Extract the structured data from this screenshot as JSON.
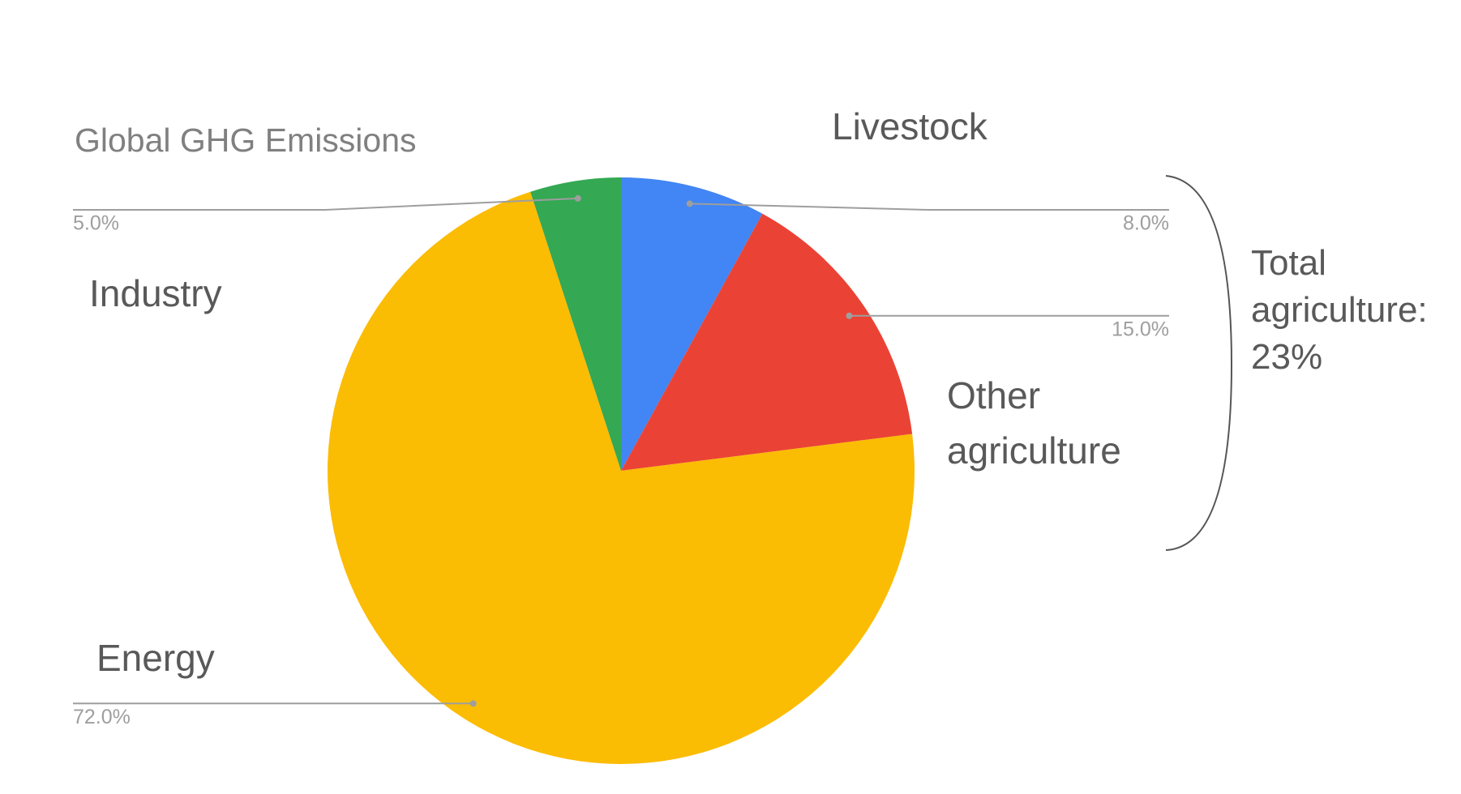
{
  "chart_data": {
    "type": "pie",
    "title": "Global GHG Emissions",
    "categories": [
      "Livestock",
      "Other agriculture",
      "Energy",
      "Industry"
    ],
    "values": [
      8,
      15,
      72,
      5
    ],
    "value_labels": [
      "8.0%",
      "15.0%",
      "72.0%",
      "5.0%"
    ],
    "colors": [
      "#4285f4",
      "#ea4335",
      "#fbbc04",
      "#34a853"
    ],
    "annotation": "Total agriculture: 23%"
  }
}
